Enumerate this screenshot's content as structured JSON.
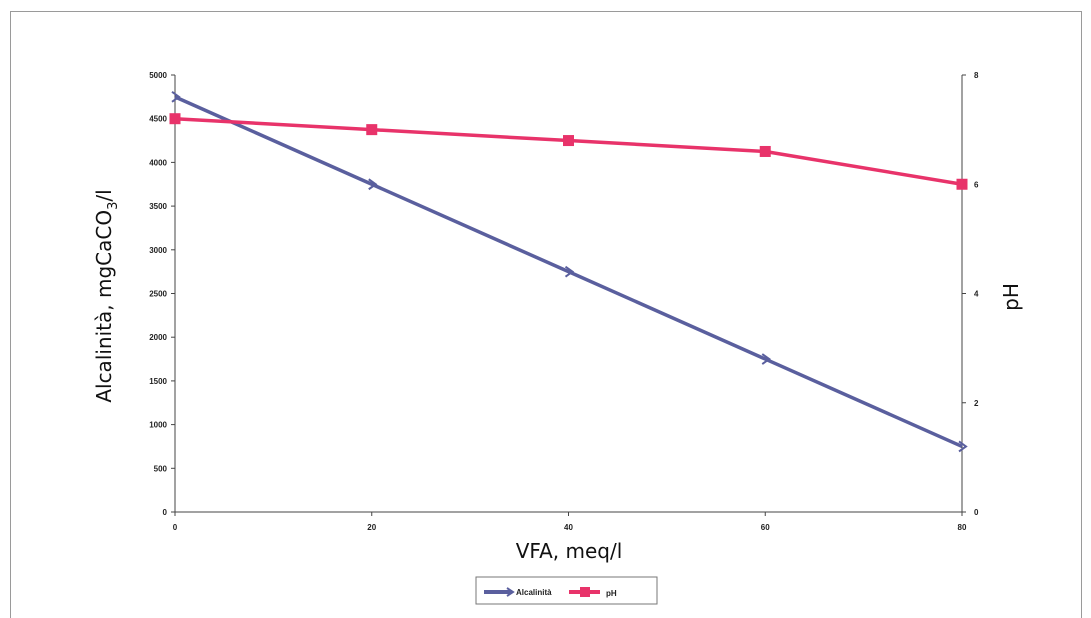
{
  "chart_data": {
    "type": "line",
    "x": [
      0,
      20,
      40,
      60,
      80
    ],
    "xlabel": "VFA, meq/l",
    "ylabel_left": "Alcalinità, mgCaCO3/l",
    "ylabel_left_main": "Alcalinità, mgCaCO",
    "ylabel_left_sub": "3",
    "ylabel_left_tail": "/l",
    "ylabel_right": "pH",
    "xlim": [
      0,
      80
    ],
    "ylim_left": [
      0,
      5000
    ],
    "ylim_right": [
      0,
      8
    ],
    "x_ticks": [
      "0",
      "20",
      "40",
      "60",
      "80"
    ],
    "y_left_ticks": [
      "0",
      "500",
      "1000",
      "1500",
      "2000",
      "2500",
      "3000",
      "3500",
      "4000",
      "4500",
      "5000"
    ],
    "y_right_ticks": [
      "0",
      "2",
      "4",
      "6",
      "8"
    ],
    "grid": false,
    "legend_position": "bottom",
    "series": [
      {
        "name": "Alcalinità",
        "axis": "left",
        "color": "#5a5f9e",
        "values": [
          4750,
          3750,
          2750,
          1750,
          750
        ]
      },
      {
        "name": "pH",
        "axis": "right",
        "color": "#e8336a",
        "values": [
          7.2,
          7.0,
          6.8,
          6.6,
          6.0
        ]
      }
    ]
  }
}
